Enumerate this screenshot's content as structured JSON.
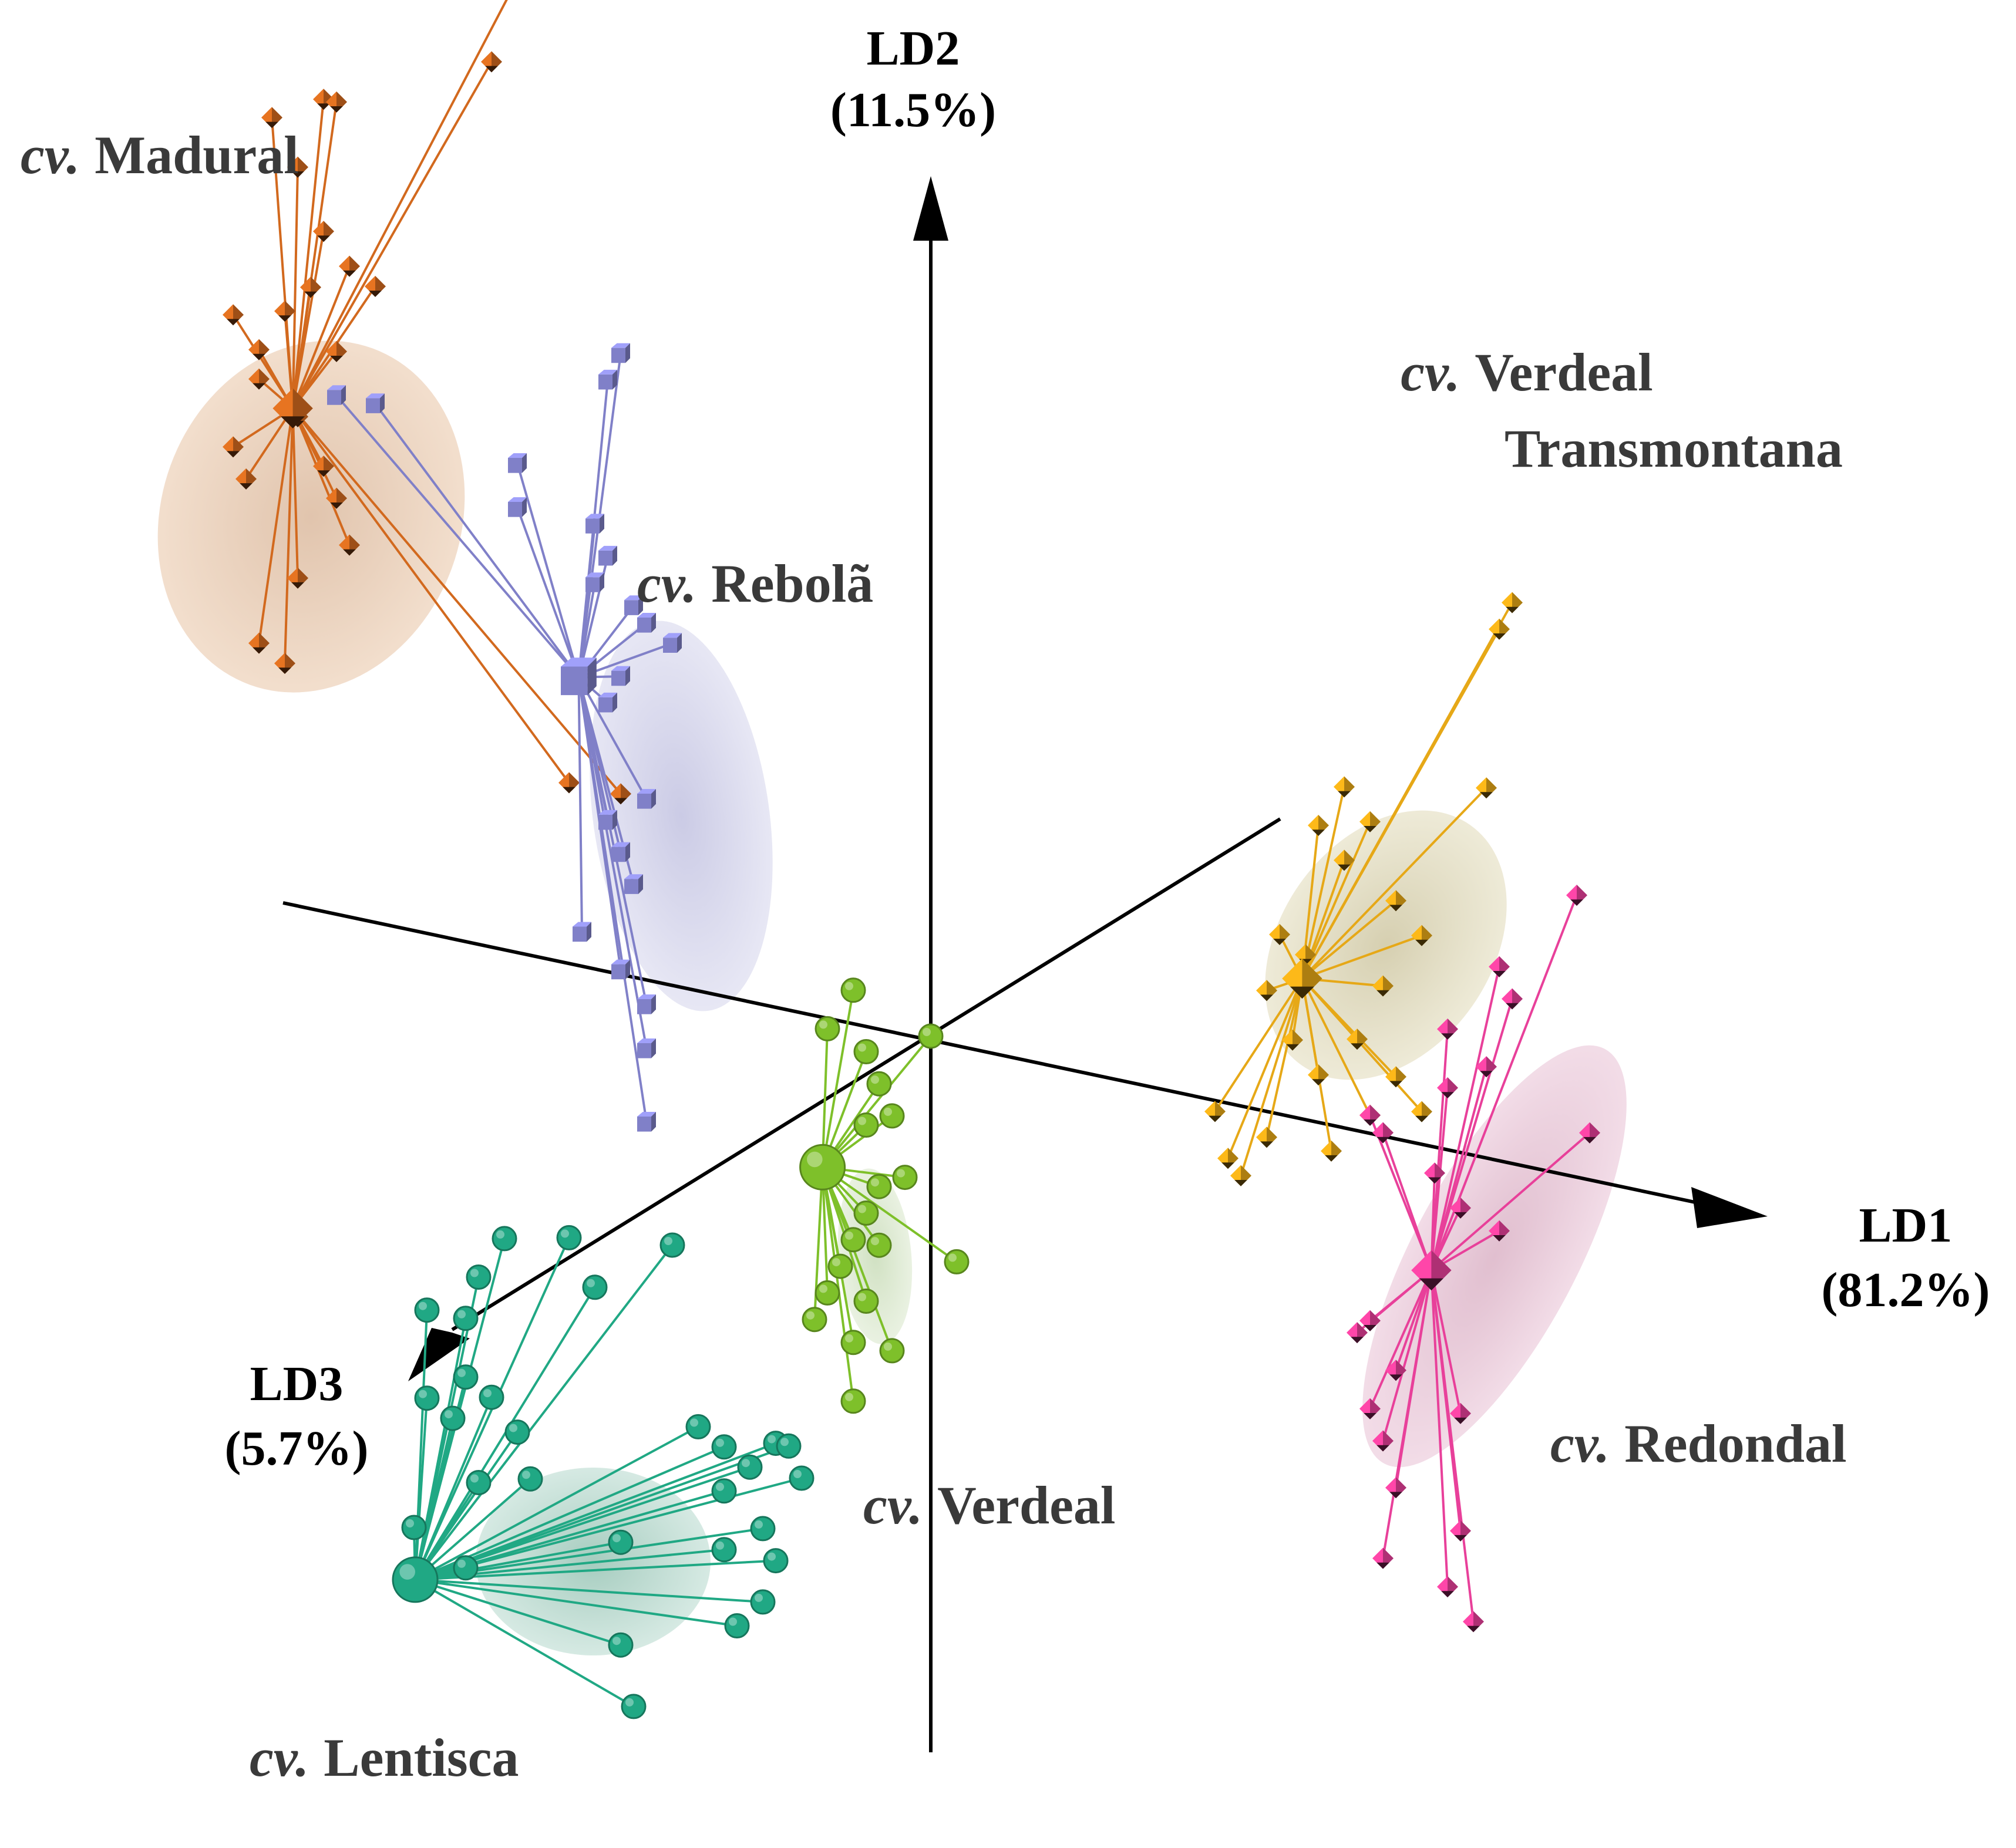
{
  "chart_data": {
    "type": "scatter",
    "title": "",
    "projection": "3d",
    "axes": [
      {
        "name": "LD1",
        "variance": "(81.2%)"
      },
      {
        "name": "LD2",
        "variance": "(11.5%)"
      },
      {
        "name": "LD3",
        "variance": "(5.7%)"
      }
    ],
    "series": [
      {
        "name": "Madural",
        "prefix": "cv.",
        "color": "#d2691e",
        "marker": "diamond",
        "centroid": [
          -4.6,
          3.6,
          0.3
        ],
        "points": [
          [
            -3.2,
            6.6,
            0.0
          ],
          [
            -3.4,
            6.0,
            0.0
          ],
          [
            -5.1,
            5.3,
            0.0
          ],
          [
            -4.7,
            5.5,
            0.0
          ],
          [
            -4.6,
            5.5,
            0.0
          ],
          [
            -4.9,
            5.0,
            0.0
          ],
          [
            -4.7,
            4.6,
            0.0
          ],
          [
            -4.5,
            4.4,
            0.0
          ],
          [
            -4.3,
            4.3,
            0.0
          ],
          [
            -4.8,
            4.2,
            0.0
          ],
          [
            -5.0,
            4.0,
            0.0
          ],
          [
            -5.4,
            3.9,
            0.0
          ],
          [
            -5.2,
            3.7,
            0.0
          ],
          [
            -4.6,
            3.8,
            0.0
          ],
          [
            -4.9,
            3.3,
            0.0
          ],
          [
            -5.2,
            3.5,
            0.0
          ],
          [
            -4.7,
            3.0,
            0.0
          ],
          [
            -5.4,
            3.0,
            0.0
          ],
          [
            -5.3,
            2.8,
            0.0
          ],
          [
            -4.6,
            2.8,
            0.0
          ],
          [
            -4.5,
            2.5,
            0.0
          ],
          [
            -4.9,
            2.2,
            0.0
          ],
          [
            -5.2,
            1.7,
            0.0
          ],
          [
            -5.0,
            1.6,
            0.0
          ],
          [
            -2.8,
            1.2,
            0.0
          ],
          [
            -2.4,
            1.2,
            0.0
          ]
        ]
      },
      {
        "name": "Rebolã",
        "prefix": "cv.",
        "color": "#8080c8",
        "marker": "cube",
        "centroid": [
          -2.5,
          2.1,
          0.2
        ],
        "points": [
          [
            -2.4,
            4.2,
            0.0
          ],
          [
            -2.5,
            4.0,
            0.0
          ],
          [
            -4.6,
            3.5,
            0.0
          ],
          [
            -4.3,
            3.5,
            0.0
          ],
          [
            -3.2,
            3.3,
            0.0
          ],
          [
            -3.2,
            3.0,
            0.0
          ],
          [
            -2.6,
            3.0,
            0.0
          ],
          [
            -2.5,
            2.8,
            0.0
          ],
          [
            -2.6,
            2.6,
            0.0
          ],
          [
            -2.3,
            2.5,
            0.0
          ],
          [
            -2.2,
            2.4,
            0.0
          ],
          [
            -2.0,
            2.3,
            0.0
          ],
          [
            -2.4,
            2.0,
            0.0
          ],
          [
            -2.5,
            1.8,
            0.0
          ],
          [
            -2.2,
            1.2,
            0.0
          ],
          [
            -2.5,
            1.0,
            0.0
          ],
          [
            -2.4,
            0.8,
            0.0
          ],
          [
            -2.3,
            0.6,
            0.0
          ],
          [
            -2.7,
            0.2,
            0.0
          ],
          [
            -2.4,
            0.0,
            0.0
          ],
          [
            -2.2,
            -0.2,
            0.0
          ],
          [
            -2.2,
            -0.5,
            0.0
          ],
          [
            -2.2,
            -1.0,
            0.0
          ]
        ]
      },
      {
        "name": "Verdeal Transmontana",
        "prefix": "cv.",
        "color": "#e6a817",
        "marker": "diamond",
        "centroid": [
          3.1,
          1.1,
          0.2
        ],
        "points": [
          [
            4.5,
            3.8,
            0.0
          ],
          [
            4.4,
            3.6,
            0.0
          ],
          [
            4.3,
            2.5,
            0.0
          ],
          [
            3.2,
            2.3,
            0.0
          ],
          [
            3.4,
            2.1,
            0.0
          ],
          [
            3.0,
            2.0,
            0.0
          ],
          [
            3.2,
            1.8,
            0.0
          ],
          [
            3.6,
            1.6,
            0.0
          ],
          [
            3.8,
            1.4,
            0.0
          ],
          [
            2.7,
            1.2,
            0.0
          ],
          [
            2.9,
            1.1,
            0.0
          ],
          [
            3.5,
            1.0,
            0.0
          ],
          [
            2.6,
            0.8,
            0.0
          ],
          [
            3.3,
            0.6,
            0.0
          ],
          [
            2.8,
            0.5,
            0.0
          ],
          [
            3.6,
            0.4,
            0.0
          ],
          [
            3.0,
            0.3,
            0.0
          ],
          [
            3.4,
            0.1,
            0.0
          ],
          [
            2.2,
            -0.1,
            0.0
          ],
          [
            2.3,
            -0.4,
            0.0
          ],
          [
            2.6,
            -0.2,
            0.0
          ],
          [
            3.1,
            -0.2,
            0.0
          ],
          [
            3.8,
            0.2,
            0.0
          ],
          [
            2.4,
            -0.5,
            0.0
          ]
        ]
      },
      {
        "name": "Redondal",
        "prefix": "cv.",
        "color": "#e8409a",
        "marker": "diamond",
        "centroid": [
          4.1,
          -0.7,
          0.2
        ],
        "points": [
          [
            5.0,
            1.9,
            0.0
          ],
          [
            4.4,
            1.3,
            0.0
          ],
          [
            4.5,
            1.1,
            0.0
          ],
          [
            4.0,
            0.8,
            0.0
          ],
          [
            4.3,
            0.6,
            0.0
          ],
          [
            5.1,
            0.3,
            0.0
          ],
          [
            4.0,
            0.4,
            0.0
          ],
          [
            3.4,
            0.1,
            0.0
          ],
          [
            3.5,
            0.0,
            0.0
          ],
          [
            4.1,
            -0.4,
            0.0
          ],
          [
            3.9,
            -0.2,
            0.0
          ],
          [
            4.4,
            -0.5,
            0.0
          ],
          [
            3.4,
            -1.3,
            0.0
          ],
          [
            3.3,
            -1.4,
            0.0
          ],
          [
            3.6,
            -1.6,
            0.0
          ],
          [
            3.4,
            -1.9,
            0.0
          ],
          [
            3.5,
            -2.1,
            0.0
          ],
          [
            3.6,
            -2.4,
            0.0
          ],
          [
            4.1,
            -1.8,
            0.0
          ],
          [
            4.1,
            -2.6,
            0.0
          ],
          [
            3.5,
            -2.9,
            0.0
          ],
          [
            4.0,
            -3.0,
            0.0
          ],
          [
            4.2,
            -3.2,
            0.0
          ]
        ]
      },
      {
        "name": "Verdeal",
        "prefix": "cv.",
        "color": "#7ec02a",
        "marker": "sphere",
        "centroid": [
          -0.5,
          -0.8,
          0.3
        ],
        "points": [
          [
            0.0,
            0.0,
            0.0
          ],
          [
            -0.6,
            0.2,
            0.0
          ],
          [
            -0.8,
            -0.1,
            0.0
          ],
          [
            -0.5,
            -0.2,
            0.0
          ],
          [
            -0.4,
            -0.4,
            0.0
          ],
          [
            -0.3,
            -0.6,
            0.0
          ],
          [
            -0.5,
            -0.7,
            0.0
          ],
          [
            -0.2,
            -1.0,
            0.0
          ],
          [
            -0.4,
            -1.1,
            0.0
          ],
          [
            -0.5,
            -1.3,
            0.0
          ],
          [
            -0.6,
            -1.5,
            0.0
          ],
          [
            -0.4,
            -1.5,
            0.0
          ],
          [
            -0.7,
            -1.7,
            0.0
          ],
          [
            -0.8,
            -1.9,
            0.0
          ],
          [
            -0.5,
            -1.9,
            0.0
          ],
          [
            -0.9,
            -2.1,
            0.0
          ],
          [
            -0.6,
            -2.2,
            0.0
          ],
          [
            -0.3,
            -2.2,
            0.0
          ],
          [
            -0.6,
            -2.6,
            0.0
          ],
          [
            0.2,
            -1.5,
            0.0
          ]
        ]
      },
      {
        "name": "Lentisca",
        "prefix": "cv.",
        "color": "#20a884",
        "marker": "sphere",
        "centroid": [
          -2.3,
          -3.2,
          1.5
        ],
        "points": [
          [
            -2.0,
            -1.8,
            0.0
          ],
          [
            -2.8,
            -1.9,
            0.0
          ],
          [
            -3.5,
            -2.3,
            0.0
          ],
          [
            -3.3,
            -2.0,
            0.0
          ],
          [
            -2.6,
            -2.2,
            0.0
          ],
          [
            -3.9,
            -2.6,
            0.0
          ],
          [
            -3.6,
            -2.6,
            0.0
          ],
          [
            -3.9,
            -3.2,
            0.0
          ],
          [
            -3.6,
            -3.0,
            0.0
          ],
          [
            -3.4,
            -3.1,
            0.0
          ],
          [
            -3.2,
            -3.3,
            0.0
          ],
          [
            -3.7,
            -3.3,
            0.0
          ],
          [
            -3.1,
            -3.6,
            0.0
          ],
          [
            -3.5,
            -3.7,
            0.0
          ],
          [
            -4.0,
            -4.1,
            0.0
          ],
          [
            -3.6,
            -4.3,
            0.0
          ],
          [
            -2.4,
            -3.9,
            0.0
          ],
          [
            -2.4,
            -4.6,
            0.0
          ],
          [
            -2.3,
            -5.0,
            0.0
          ],
          [
            -1.6,
            -3.8,
            0.0
          ],
          [
            -1.6,
            -3.4,
            0.0
          ],
          [
            -1.3,
            -3.6,
            0.0
          ],
          [
            -1.2,
            -3.8,
            0.0
          ],
          [
            -1.3,
            -4.1,
            0.0
          ],
          [
            -1.5,
            -4.3,
            0.0
          ],
          [
            -1.8,
            -3.0,
            0.0
          ],
          [
            -1.6,
            -3.1,
            0.0
          ],
          [
            -1.4,
            -3.2,
            0.0
          ],
          [
            -1.2,
            -3.0,
            0.0
          ],
          [
            -1.0,
            -3.2,
            0.0
          ],
          [
            -1.1,
            -3.0,
            0.0
          ]
        ]
      }
    ]
  }
}
